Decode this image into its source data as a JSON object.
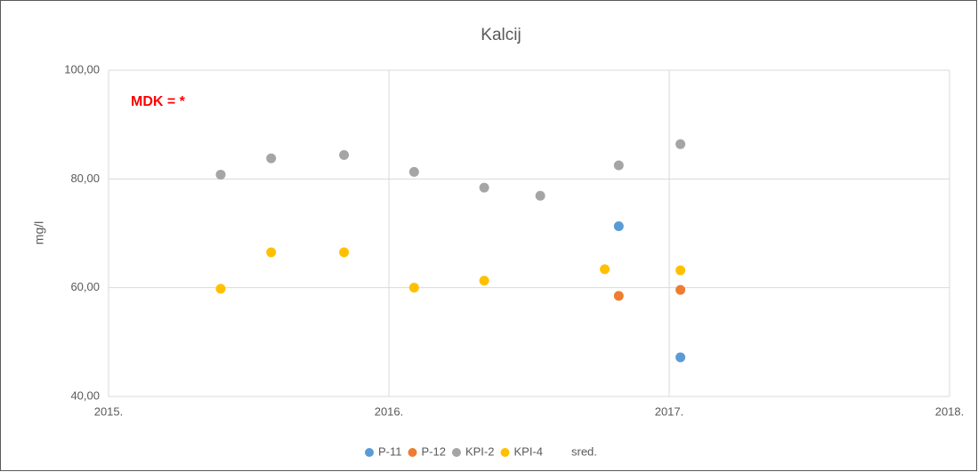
{
  "chart_data": {
    "type": "scatter",
    "title": "Kalcij",
    "y_label": "mg/l",
    "annotation": "MDK = *",
    "xlim": [
      2015,
      2018
    ],
    "xticks": [
      {
        "value": 2015,
        "label": "2015."
      },
      {
        "value": 2016,
        "label": "2016."
      },
      {
        "value": 2017,
        "label": "2017."
      },
      {
        "value": 2018,
        "label": "2018."
      }
    ],
    "ylim": [
      40,
      100
    ],
    "yticks": [
      {
        "value": 40,
        "label": "40,00"
      },
      {
        "value": 60,
        "label": "60,00"
      },
      {
        "value": 80,
        "label": "80,00"
      },
      {
        "value": 100,
        "label": "100,00"
      }
    ],
    "grid": true,
    "legend": "bottom",
    "series": [
      {
        "name": "P-11",
        "color": "#5b9bd5",
        "x": [
          2016.82,
          2017.04
        ],
        "values": [
          71.3,
          47.2
        ]
      },
      {
        "name": "P-12",
        "color": "#ed7d31",
        "x": [
          2016.82,
          2017.04
        ],
        "values": [
          58.5,
          59.6
        ]
      },
      {
        "name": "KPI-2",
        "color": "#a5a5a5",
        "x": [
          2015.4,
          2015.58,
          2015.84,
          2016.09,
          2016.34,
          2016.54,
          2016.82,
          2017.04
        ],
        "values": [
          80.8,
          83.8,
          84.4,
          81.3,
          78.4,
          76.9,
          82.5,
          86.4
        ]
      },
      {
        "name": "KPI-4",
        "color": "#ffc000",
        "x": [
          2015.4,
          2015.58,
          2015.84,
          2016.09,
          2016.34,
          2016.77,
          2017.04
        ],
        "values": [
          59.8,
          66.5,
          66.5,
          60.0,
          61.3,
          63.4,
          63.2
        ]
      },
      {
        "name": "sred.",
        "x": [],
        "values": []
      }
    ]
  }
}
